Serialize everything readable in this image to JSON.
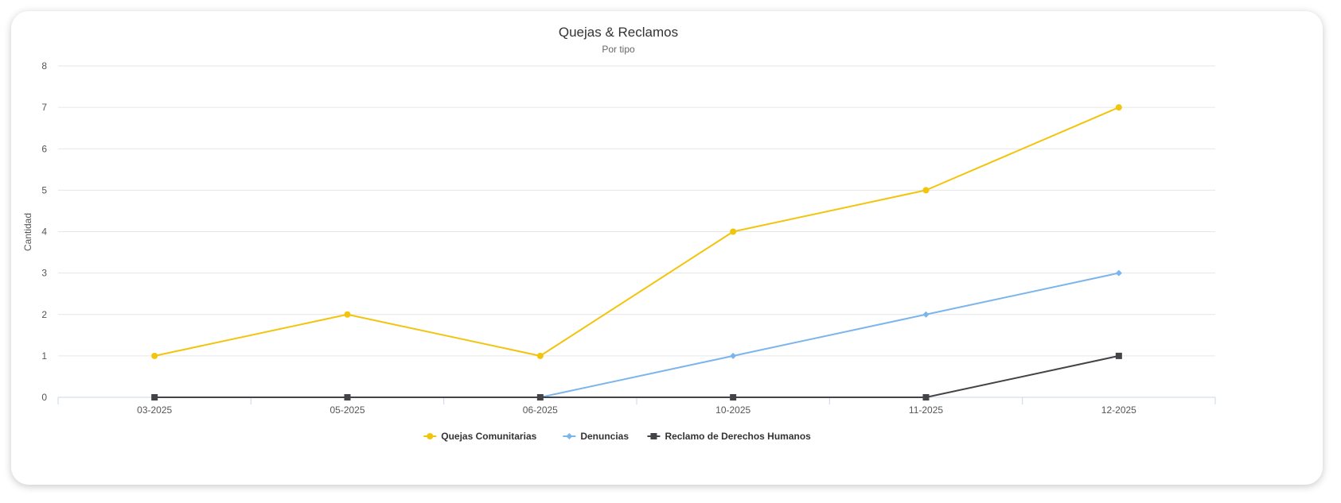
{
  "chart_data": {
    "type": "line",
    "title": "Quejas & Reclamos",
    "subtitle": "Por tipo",
    "xlabel": "",
    "ylabel": "Cantidad",
    "categories": [
      "03-2025",
      "05-2025",
      "06-2025",
      "10-2025",
      "11-2025",
      "12-2025"
    ],
    "ylim": [
      0,
      8
    ],
    "yticks": [
      0,
      1,
      2,
      3,
      4,
      5,
      6,
      7,
      8
    ],
    "grid": true,
    "legend_position": "bottom-center",
    "series": [
      {
        "name": "Quejas Comunitarias",
        "color": "#f2c40c",
        "marker": "circle",
        "values": [
          1,
          2,
          1,
          4,
          5,
          7
        ]
      },
      {
        "name": "Denuncias",
        "color": "#7cb5ec",
        "marker": "diamond",
        "values": [
          0,
          0,
          0,
          1,
          2,
          3
        ]
      },
      {
        "name": "Reclamo de Derechos Humanos",
        "color": "#434348",
        "marker": "square",
        "values": [
          0,
          0,
          0,
          0,
          0,
          1
        ]
      }
    ]
  }
}
